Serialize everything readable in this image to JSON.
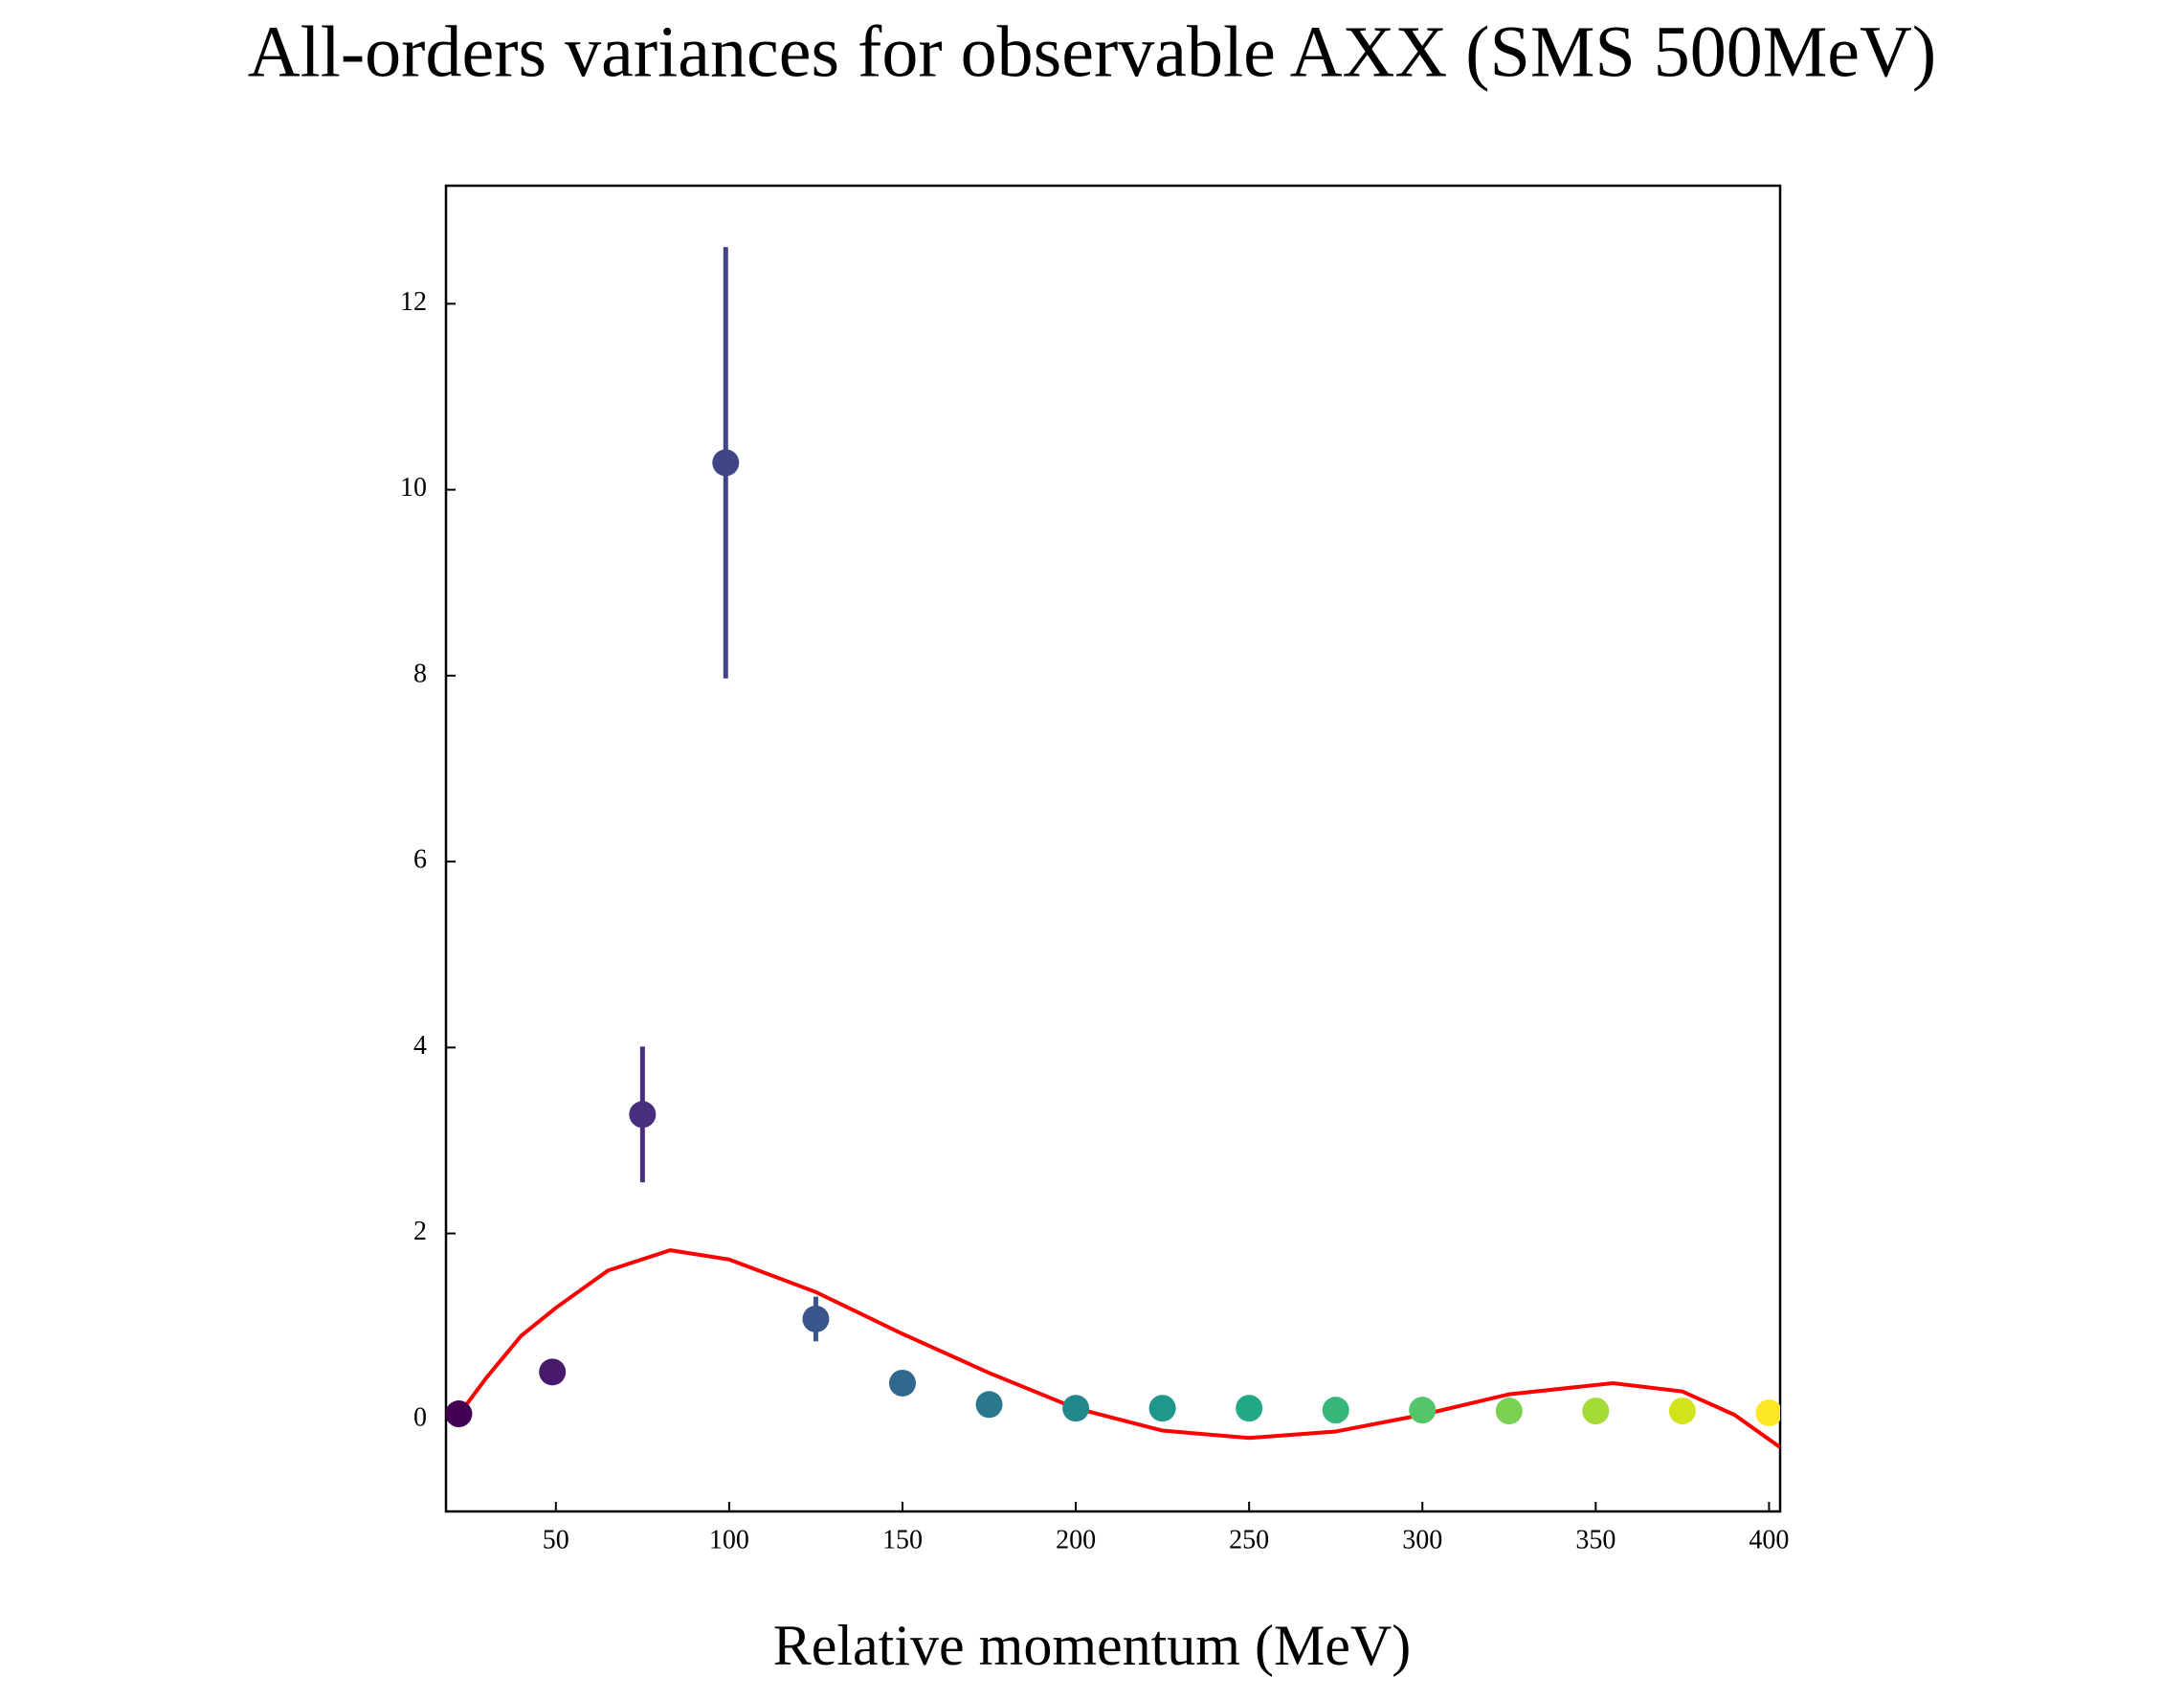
{
  "chart_data": {
    "type": "scatter",
    "title": "All-orders variances for observable AXX (SMS 500MeV)",
    "xlabel": "Relative momentum (MeV)",
    "x": [
      22,
      49,
      75,
      99,
      125,
      150,
      175,
      200,
      225,
      250,
      275,
      300,
      325,
      350,
      375,
      400
    ],
    "values": [
      0.06,
      0.51,
      3.28,
      10.29,
      1.08,
      0.39,
      0.16,
      0.12,
      0.12,
      0.12,
      0.1,
      0.1,
      0.09,
      0.09,
      0.09,
      0.07
    ],
    "errors": [
      0,
      0,
      0.73,
      2.32,
      0.24,
      0,
      0,
      0,
      0,
      0,
      0,
      0,
      0,
      0,
      0,
      0
    ],
    "colors": [
      "#440154",
      "#481a6c",
      "#472f7d",
      "#414487",
      "#39568c",
      "#31688e",
      "#2a788e",
      "#23888e",
      "#1f988b",
      "#22a884",
      "#35b779",
      "#54c568",
      "#7ad151",
      "#a5db36",
      "#d2e21b",
      "#fde725"
    ],
    "fit": {
      "color": "#ff0000",
      "x": [
        22,
        30,
        40,
        50,
        65,
        83,
        100,
        125,
        150,
        175,
        200,
        225,
        250,
        275,
        300,
        325,
        355,
        375,
        390,
        403.2
      ],
      "y": [
        0.05,
        0.45,
        0.9,
        1.2,
        1.6,
        1.82,
        1.72,
        1.37,
        0.92,
        0.5,
        0.12,
        -0.12,
        -0.2,
        -0.13,
        0.05,
        0.27,
        0.39,
        0.3,
        0.05,
        -0.3
      ]
    },
    "xlim": [
      18.3,
      403.2
    ],
    "ylim": [
      -0.99,
      13.27
    ],
    "xticks": [
      50,
      100,
      150,
      200,
      250,
      300,
      350,
      400
    ],
    "yticks": [
      0,
      2,
      4,
      6,
      8,
      10,
      12
    ]
  }
}
